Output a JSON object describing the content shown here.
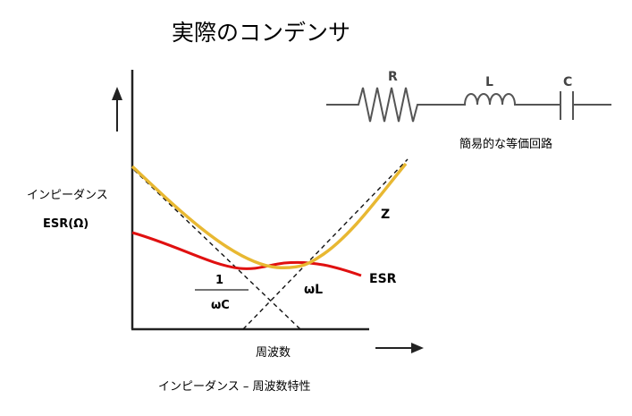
{
  "title": "実際のコンデンサ",
  "y_axis": {
    "label_line1": "インピーダンス",
    "label_line2": "ESR(Ω)"
  },
  "x_axis": {
    "label": "周波数"
  },
  "caption": "インピーダンス – 周波数特性",
  "curve_labels": {
    "z": "Z",
    "esr": "ESR",
    "omega_l": "ωL",
    "inv_numerator": "1",
    "inv_denominator": "ωC"
  },
  "circuit": {
    "r_label": "R",
    "l_label": "L",
    "c_label": "C",
    "caption": "簡易的な等価回路"
  },
  "colors": {
    "z_curve": "#e8b832",
    "esr_curve": "#e01010",
    "axis": "#222222",
    "asymptote": "#111111",
    "circuit_wire": "#555555"
  }
}
